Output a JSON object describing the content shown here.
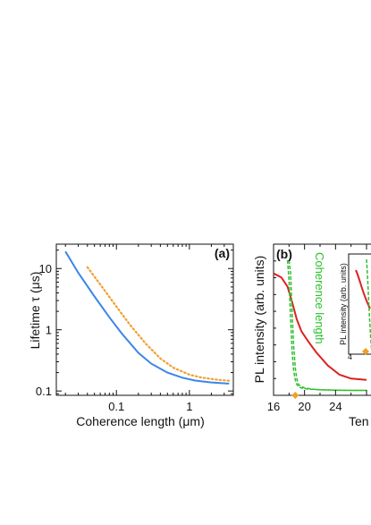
{
  "chart_data": [
    {
      "panel": "(a)",
      "type": "line",
      "xlabel": "Coherence length (μm)",
      "ylabel": "Lifetime τ (μs)",
      "xscale": "log",
      "yscale": "log",
      "xlim": [
        0.015,
        4
      ],
      "ylim": [
        0.085,
        25
      ],
      "xticks": [
        0.1,
        1
      ],
      "xtick_labels": [
        "0.1",
        "1"
      ],
      "yticks": [
        0.1,
        1,
        10
      ],
      "ytick_labels": [
        "0.1",
        "1",
        "10"
      ],
      "grid": false,
      "series": [
        {
          "style": "solid",
          "color": "#3a86e8",
          "x": [
            0.02,
            0.03,
            0.05,
            0.08,
            0.12,
            0.2,
            0.3,
            0.5,
            0.8,
            1.2,
            2,
            3.5
          ],
          "y": [
            19,
            8.5,
            3.5,
            1.6,
            0.85,
            0.42,
            0.28,
            0.2,
            0.165,
            0.148,
            0.138,
            0.132
          ]
        },
        {
          "style": "dotted",
          "color": "#f0a030",
          "x": [
            0.04,
            0.06,
            0.1,
            0.15,
            0.25,
            0.4,
            0.6,
            1,
            1.5,
            2.5,
            3.5
          ],
          "y": [
            10.5,
            5.5,
            2.4,
            1.25,
            0.6,
            0.34,
            0.24,
            0.185,
            0.165,
            0.152,
            0.147
          ]
        }
      ]
    },
    {
      "panel": "(b)",
      "type": "line",
      "xlabel": "Ten",
      "ylabel": "PL intensity (arb. units)",
      "xlim": [
        16,
        31
      ],
      "xticks": [
        16,
        20,
        24
      ],
      "xtick_labels": [
        "16",
        "20",
        "24"
      ],
      "annotation": "Coherence length",
      "marker": {
        "x": 18.8,
        "shape": "diamond",
        "color": "#f0a020"
      },
      "series": [
        {
          "style": "solid",
          "color": "#dd2020",
          "x": [
            16,
            17,
            17.8,
            18.4,
            19,
            19.6,
            20.5,
            21.5,
            23,
            24.5,
            26,
            28
          ],
          "y": [
            0.9,
            0.87,
            0.8,
            0.68,
            0.55,
            0.46,
            0.38,
            0.3,
            0.2,
            0.13,
            0.1,
            0.09
          ]
        },
        {
          "style": "dashed",
          "color": "#2dc02d",
          "x": [
            18,
            18.2,
            18.4,
            18.6,
            18.8,
            19.0,
            19.2,
            19.5,
            20,
            21,
            22,
            24,
            26,
            28
          ],
          "y": [
            1.0,
            0.9,
            0.6,
            0.35,
            0.18,
            0.1,
            0.06,
            0.04,
            0.03,
            0.02,
            0.015,
            0.012,
            0.01,
            0.01
          ]
        },
        {
          "style": "dashed",
          "color": "#2dc02d",
          "x": [
            17.8,
            18.0,
            18.2,
            18.4,
            18.6,
            18.8,
            19.0,
            19.3,
            19.8,
            20.5,
            22,
            24,
            26,
            28
          ],
          "y": [
            1.0,
            0.85,
            0.55,
            0.3,
            0.16,
            0.09,
            0.055,
            0.035,
            0.025,
            0.02,
            0.015,
            0.012,
            0.01,
            0.01
          ]
        }
      ],
      "inset": {
        "ylabel": "PL intensity (arb. units)",
        "xtick_labels": [
          "4"
        ],
        "marker": {
          "shape": "diamond",
          "color": "#f0a020"
        }
      }
    }
  ]
}
